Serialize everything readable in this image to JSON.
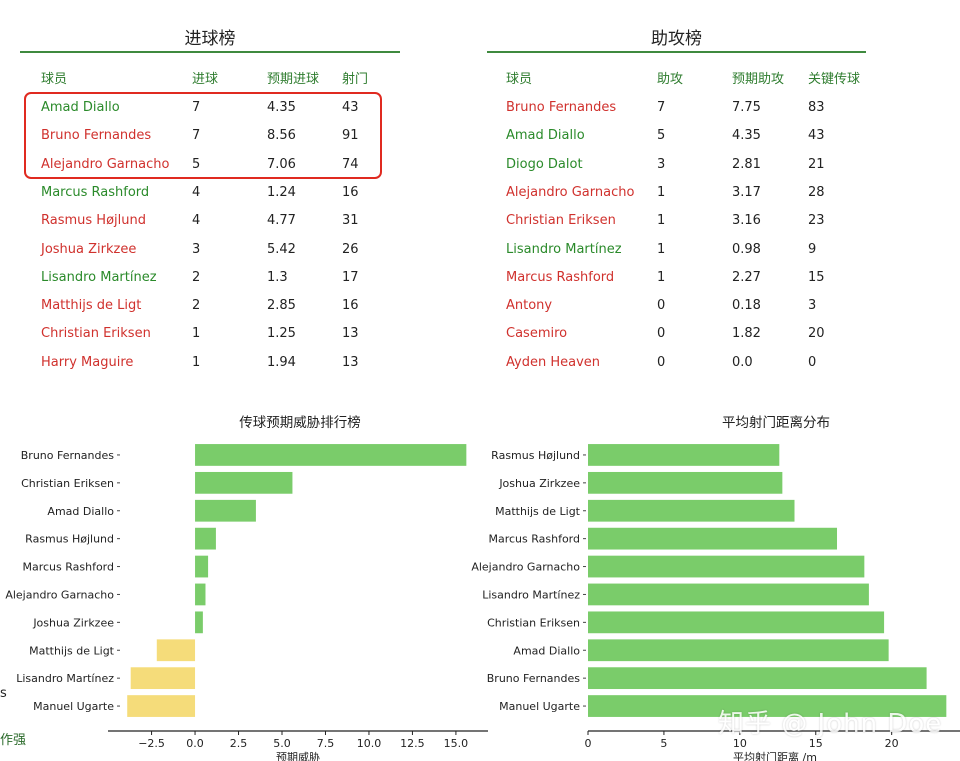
{
  "goals_table": {
    "title": "进球榜",
    "headers": [
      "球员",
      "进球",
      "预期进球",
      "射门"
    ],
    "rows": [
      {
        "player": "Amad Diallo",
        "color": "green",
        "cells": [
          "7",
          "4.35",
          "43"
        ]
      },
      {
        "player": "Bruno Fernandes",
        "color": "red",
        "cells": [
          "7",
          "8.56",
          "91"
        ]
      },
      {
        "player": "Alejandro Garnacho",
        "color": "red",
        "cells": [
          "5",
          "7.06",
          "74"
        ]
      },
      {
        "player": "Marcus Rashford",
        "color": "green",
        "cells": [
          "4",
          "1.24",
          "16"
        ]
      },
      {
        "player": "Rasmus Højlund",
        "color": "red",
        "cells": [
          "4",
          "4.77",
          "31"
        ]
      },
      {
        "player": "Joshua Zirkzee",
        "color": "red",
        "cells": [
          "3",
          "5.42",
          "26"
        ]
      },
      {
        "player": "Lisandro Martínez",
        "color": "green",
        "cells": [
          "2",
          "1.3",
          "17"
        ]
      },
      {
        "player": "Matthijs de Ligt",
        "color": "red",
        "cells": [
          "2",
          "2.85",
          "16"
        ]
      },
      {
        "player": "Christian Eriksen",
        "color": "red",
        "cells": [
          "1",
          "1.25",
          "13"
        ]
      },
      {
        "player": "Harry Maguire",
        "color": "red",
        "cells": [
          "1",
          "1.94",
          "13"
        ]
      }
    ]
  },
  "assists_table": {
    "title": "助攻榜",
    "headers": [
      "球员",
      "助攻",
      "预期助攻",
      "关键传球"
    ],
    "rows": [
      {
        "player": "Bruno Fernandes",
        "color": "red",
        "cells": [
          "7",
          "7.75",
          "83"
        ]
      },
      {
        "player": "Amad Diallo",
        "color": "green",
        "cells": [
          "5",
          "4.35",
          "43"
        ]
      },
      {
        "player": "Diogo Dalot",
        "color": "green",
        "cells": [
          "3",
          "2.81",
          "21"
        ]
      },
      {
        "player": "Alejandro Garnacho",
        "color": "red",
        "cells": [
          "1",
          "3.17",
          "28"
        ]
      },
      {
        "player": "Christian Eriksen",
        "color": "red",
        "cells": [
          "1",
          "3.16",
          "23"
        ]
      },
      {
        "player": "Lisandro Martínez",
        "color": "green",
        "cells": [
          "1",
          "0.98",
          "9"
        ]
      },
      {
        "player": "Marcus Rashford",
        "color": "red",
        "cells": [
          "1",
          "2.27",
          "15"
        ]
      },
      {
        "player": "Antony",
        "color": "red",
        "cells": [
          "0",
          "0.18",
          "3"
        ]
      },
      {
        "player": "Casemiro",
        "color": "red",
        "cells": [
          "0",
          "1.82",
          "20"
        ]
      },
      {
        "player": "Ayden Heaven",
        "color": "red",
        "cells": [
          "0",
          "0.0",
          "0"
        ]
      }
    ]
  },
  "colors": {
    "green_text": "#2a8a2a",
    "red_text": "#d0312d",
    "bar_positive": "#7acc6a",
    "bar_negative": "#f5dc7a",
    "highlight_border": "#e02a20"
  },
  "chart_data": [
    {
      "type": "bar",
      "orientation": "horizontal",
      "title": "传球预期威胁排行榜",
      "xlabel": "预期威胁",
      "categories": [
        "Bruno Fernandes",
        "Christian Eriksen",
        "Amad Diallo",
        "Rasmus Højlund",
        "Marcus Rashford",
        "Alejandro Garnacho",
        "Joshua Zirkzee",
        "Matthijs de Ligt",
        "Lisandro Martínez",
        "Manuel Ugarte"
      ],
      "values": [
        15.6,
        5.6,
        3.5,
        1.2,
        0.75,
        0.6,
        0.45,
        -2.2,
        -3.7,
        -3.9
      ],
      "xlim": [
        -4.2,
        16.5
      ],
      "xticks": [
        "−2.5",
        "0.0",
        "2.5",
        "5.0",
        "7.5",
        "10.0",
        "12.5",
        "15.0"
      ],
      "xtick_values": [
        -2.5,
        0,
        2.5,
        5,
        7.5,
        10,
        12.5,
        15
      ]
    },
    {
      "type": "bar",
      "orientation": "horizontal",
      "title": "平均射门距离分布",
      "xlabel": "平均射门距离 /m",
      "categories": [
        "Rasmus Højlund",
        "Joshua Zirkzee",
        "Matthijs de Ligt",
        "Marcus Rashford",
        "Alejandro Garnacho",
        "Lisandro Martínez",
        "Christian Eriksen",
        "Amad Diallo",
        "Bruno Fernandes",
        "Manuel Ugarte"
      ],
      "values": [
        12.6,
        12.8,
        13.6,
        16.4,
        18.2,
        18.5,
        19.5,
        19.8,
        22.3,
        23.6
      ],
      "xlim": [
        0,
        24.5
      ],
      "xticks": [
        "0",
        "5",
        "10",
        "15",
        "20"
      ],
      "xtick_values": [
        0,
        5,
        10,
        15,
        20
      ]
    }
  ],
  "edge_fragments": {
    "left_s": "s",
    "bottom_left": "作强"
  },
  "watermark": "知乎 @ John Doe"
}
